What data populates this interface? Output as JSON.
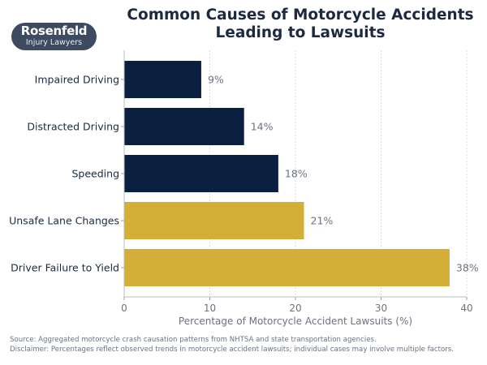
{
  "logo": {
    "line1": "Rosenfeld",
    "line2": "Injury Lawyers"
  },
  "chart_data": {
    "type": "bar",
    "orientation": "horizontal",
    "title": "Common Causes of Motorcycle Accidents Leading to Lawsuits",
    "xlabel": "Percentage of Motorcycle Accident Lawsuits (%)",
    "ylabel": "",
    "xlim": [
      0,
      40
    ],
    "xticks": [
      0,
      10,
      20,
      30,
      40
    ],
    "grid": "vertical",
    "categories": [
      "Impaired Driving",
      "Distracted Driving",
      "Speeding",
      "Unsafe Lane Changes",
      "Driver Failure to Yield"
    ],
    "values": [
      9,
      14,
      18,
      21,
      38
    ],
    "data_labels": [
      "9%",
      "14%",
      "18%",
      "21%",
      "38%"
    ],
    "bar_colors": [
      "#0b2040",
      "#0b2040",
      "#0b2040",
      "#d4af37",
      "#d4af37"
    ]
  },
  "footer": {
    "source": "Source: Aggregated motorcycle crash causation patterns from NHTSA and state transportation agencies.",
    "disclaimer": "Disclaimer: Percentages reflect observed trends in motorcycle accident lawsuits; individual cases may involve multiple factors."
  }
}
